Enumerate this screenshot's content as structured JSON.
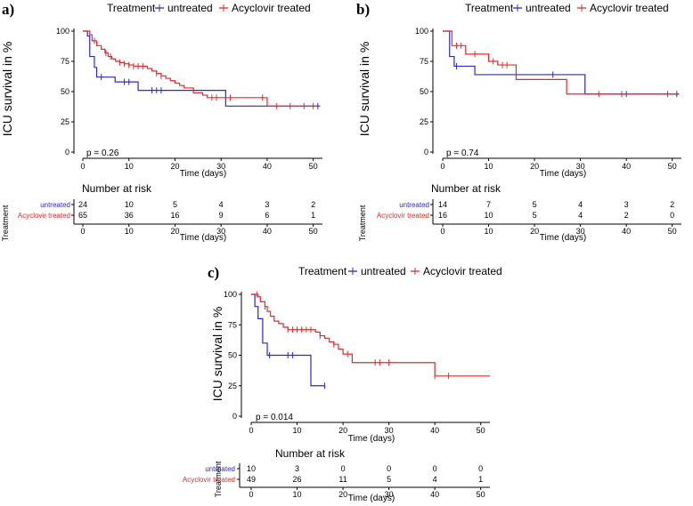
{
  "colors": {
    "untreated": "#2b2bc0",
    "acyclovir": "#e02b2b",
    "axis": "#000000"
  },
  "legend": {
    "title": "Treatment",
    "untreated": "untreated",
    "acyclovir": "Acyclovir treated"
  },
  "risk_table": {
    "title": "Number at risk",
    "ylabel": "Treatment",
    "xlabel": "Time (days)"
  },
  "chart_data": [
    {
      "id": "a",
      "panel_label": "a)",
      "type": "line",
      "title": "",
      "xlabel": "Time (days)",
      "ylabel": "ICU survival in %",
      "xlim": [
        0,
        52
      ],
      "ylim": [
        0,
        100
      ],
      "xticks": [
        0,
        10,
        20,
        30,
        40,
        50
      ],
      "yticks": [
        0,
        25,
        50,
        75,
        100
      ],
      "p_value": "p = 0.26",
      "series": [
        {
          "name": "untreated",
          "steps": [
            [
              0,
              100
            ],
            [
              1,
              96
            ],
            [
              1.5,
              79
            ],
            [
              2.5,
              70
            ],
            [
              3,
              62
            ],
            [
              7,
              58
            ],
            [
              12,
              51
            ],
            [
              22,
              51
            ],
            [
              31,
              38
            ],
            [
              51.5,
              38
            ]
          ],
          "censor": [
            [
              4,
              62
            ],
            [
              9,
              58
            ],
            [
              10,
              58
            ],
            [
              15,
              51
            ],
            [
              16,
              51
            ],
            [
              17,
              51
            ],
            [
              51,
              38
            ]
          ]
        },
        {
          "name": "Acyclovir treated",
          "steps": [
            [
              0,
              100
            ],
            [
              1.5,
              97
            ],
            [
              2,
              92
            ],
            [
              3,
              88
            ],
            [
              4,
              85
            ],
            [
              4.8,
              82
            ],
            [
              5.5,
              79
            ],
            [
              6.3,
              77
            ],
            [
              7.1,
              75
            ],
            [
              8,
              74
            ],
            [
              9,
              73
            ],
            [
              10,
              72
            ],
            [
              11,
              71
            ],
            [
              14,
              69
            ],
            [
              15,
              67
            ],
            [
              16,
              65
            ],
            [
              17,
              63
            ],
            [
              18,
              61
            ],
            [
              19,
              59
            ],
            [
              20,
              57
            ],
            [
              21,
              55
            ],
            [
              22,
              53
            ],
            [
              24,
              49
            ],
            [
              26,
              47
            ],
            [
              27,
              45
            ],
            [
              40,
              38
            ],
            [
              51.5,
              38
            ]
          ],
          "censor": [
            [
              2.5,
              92
            ],
            [
              5,
              82
            ],
            [
              6,
              79
            ],
            [
              8,
              74
            ],
            [
              9,
              73
            ],
            [
              10,
              72
            ],
            [
              11,
              71
            ],
            [
              12,
              71
            ],
            [
              13,
              71
            ],
            [
              16,
              65
            ],
            [
              17,
              63
            ],
            [
              28,
              45
            ],
            [
              29,
              45
            ],
            [
              32,
              45
            ],
            [
              39,
              45
            ],
            [
              42,
              38
            ],
            [
              45,
              38
            ],
            [
              48,
              38
            ],
            [
              50,
              38
            ]
          ]
        }
      ],
      "risk": {
        "times": [
          0,
          10,
          20,
          30,
          40,
          50
        ],
        "untreated": [
          24,
          10,
          5,
          4,
          3,
          2
        ],
        "acyclovir": [
          65,
          36,
          16,
          9,
          6,
          1
        ]
      }
    },
    {
      "id": "b",
      "panel_label": "b)",
      "type": "line",
      "title": "",
      "xlabel": "Time (days)",
      "ylabel": "ICU survival in %",
      "xlim": [
        0,
        52
      ],
      "ylim": [
        0,
        100
      ],
      "xticks": [
        0,
        10,
        20,
        30,
        40,
        50
      ],
      "yticks": [
        0,
        25,
        50,
        75,
        100
      ],
      "p_value": "p = 0.74",
      "series": [
        {
          "name": "untreated",
          "steps": [
            [
              0,
              100
            ],
            [
              1.5,
              79
            ],
            [
              2.5,
              71
            ],
            [
              7,
              64
            ],
            [
              31,
              48
            ],
            [
              51.5,
              48
            ]
          ],
          "censor": [
            [
              3,
              71
            ],
            [
              16,
              64
            ],
            [
              24,
              64
            ],
            [
              40,
              48
            ],
            [
              51,
              48
            ]
          ]
        },
        {
          "name": "Acyclovir treated",
          "steps": [
            [
              0,
              100
            ],
            [
              2,
              88
            ],
            [
              5,
              81
            ],
            [
              10,
              75
            ],
            [
              12,
              72
            ],
            [
              16,
              60
            ],
            [
              27,
              48
            ],
            [
              51.5,
              48
            ]
          ],
          "censor": [
            [
              3,
              88
            ],
            [
              4,
              88
            ],
            [
              7,
              81
            ],
            [
              11,
              75
            ],
            [
              13,
              72
            ],
            [
              14,
              72
            ],
            [
              34,
              48
            ],
            [
              39,
              48
            ],
            [
              49,
              48
            ]
          ]
        }
      ],
      "risk": {
        "times": [
          0,
          10,
          20,
          30,
          40,
          50
        ],
        "untreated": [
          14,
          7,
          5,
          4,
          3,
          2
        ],
        "acyclovir": [
          16,
          10,
          5,
          4,
          2,
          0
        ]
      }
    },
    {
      "id": "c",
      "panel_label": "c)",
      "type": "line",
      "title": "",
      "xlabel": "Time (days)",
      "ylabel": "ICU survival in %",
      "xlim": [
        0,
        52
      ],
      "ylim": [
        0,
        100
      ],
      "xticks": [
        0,
        10,
        20,
        30,
        40,
        50
      ],
      "yticks": [
        0,
        25,
        50,
        75,
        100
      ],
      "p_value": "p = 0.014",
      "series": [
        {
          "name": "untreated",
          "steps": [
            [
              0,
              100
            ],
            [
              0.8,
              90
            ],
            [
              1.5,
              80
            ],
            [
              2.5,
              60
            ],
            [
              3.5,
              50
            ],
            [
              13,
              25
            ],
            [
              16,
              25
            ]
          ],
          "censor": [
            [
              4,
              50
            ],
            [
              8,
              50
            ],
            [
              9,
              50
            ],
            [
              16,
              25
            ]
          ]
        },
        {
          "name": "Acyclovir treated",
          "steps": [
            [
              0,
              100
            ],
            [
              1.5,
              98
            ],
            [
              2,
              94
            ],
            [
              3,
              90
            ],
            [
              3.5,
              86
            ],
            [
              4.2,
              82
            ],
            [
              5,
              78
            ],
            [
              6,
              76
            ],
            [
              7,
              73
            ],
            [
              8,
              71
            ],
            [
              14,
              69
            ],
            [
              15,
              66
            ],
            [
              16,
              64
            ],
            [
              17,
              61
            ],
            [
              18,
              59
            ],
            [
              19,
              55
            ],
            [
              20,
              51
            ],
            [
              22,
              44
            ],
            [
              40,
              33
            ],
            [
              52,
              33
            ]
          ],
          "censor": [
            [
              1.2,
              100
            ],
            [
              3,
              90
            ],
            [
              8,
              71
            ],
            [
              9,
              71
            ],
            [
              10,
              71
            ],
            [
              11,
              71
            ],
            [
              12,
              71
            ],
            [
              13,
              71
            ],
            [
              15,
              66
            ],
            [
              18,
              59
            ],
            [
              21,
              51
            ],
            [
              27,
              44
            ],
            [
              28,
              44
            ],
            [
              30,
              44
            ],
            [
              40,
              33
            ],
            [
              43,
              33
            ]
          ]
        }
      ],
      "risk": {
        "times": [
          0,
          10,
          20,
          30,
          40,
          50
        ],
        "untreated": [
          10,
          3,
          0,
          0,
          0,
          0
        ],
        "acyclovir": [
          49,
          26,
          11,
          5,
          4,
          1
        ]
      }
    }
  ]
}
